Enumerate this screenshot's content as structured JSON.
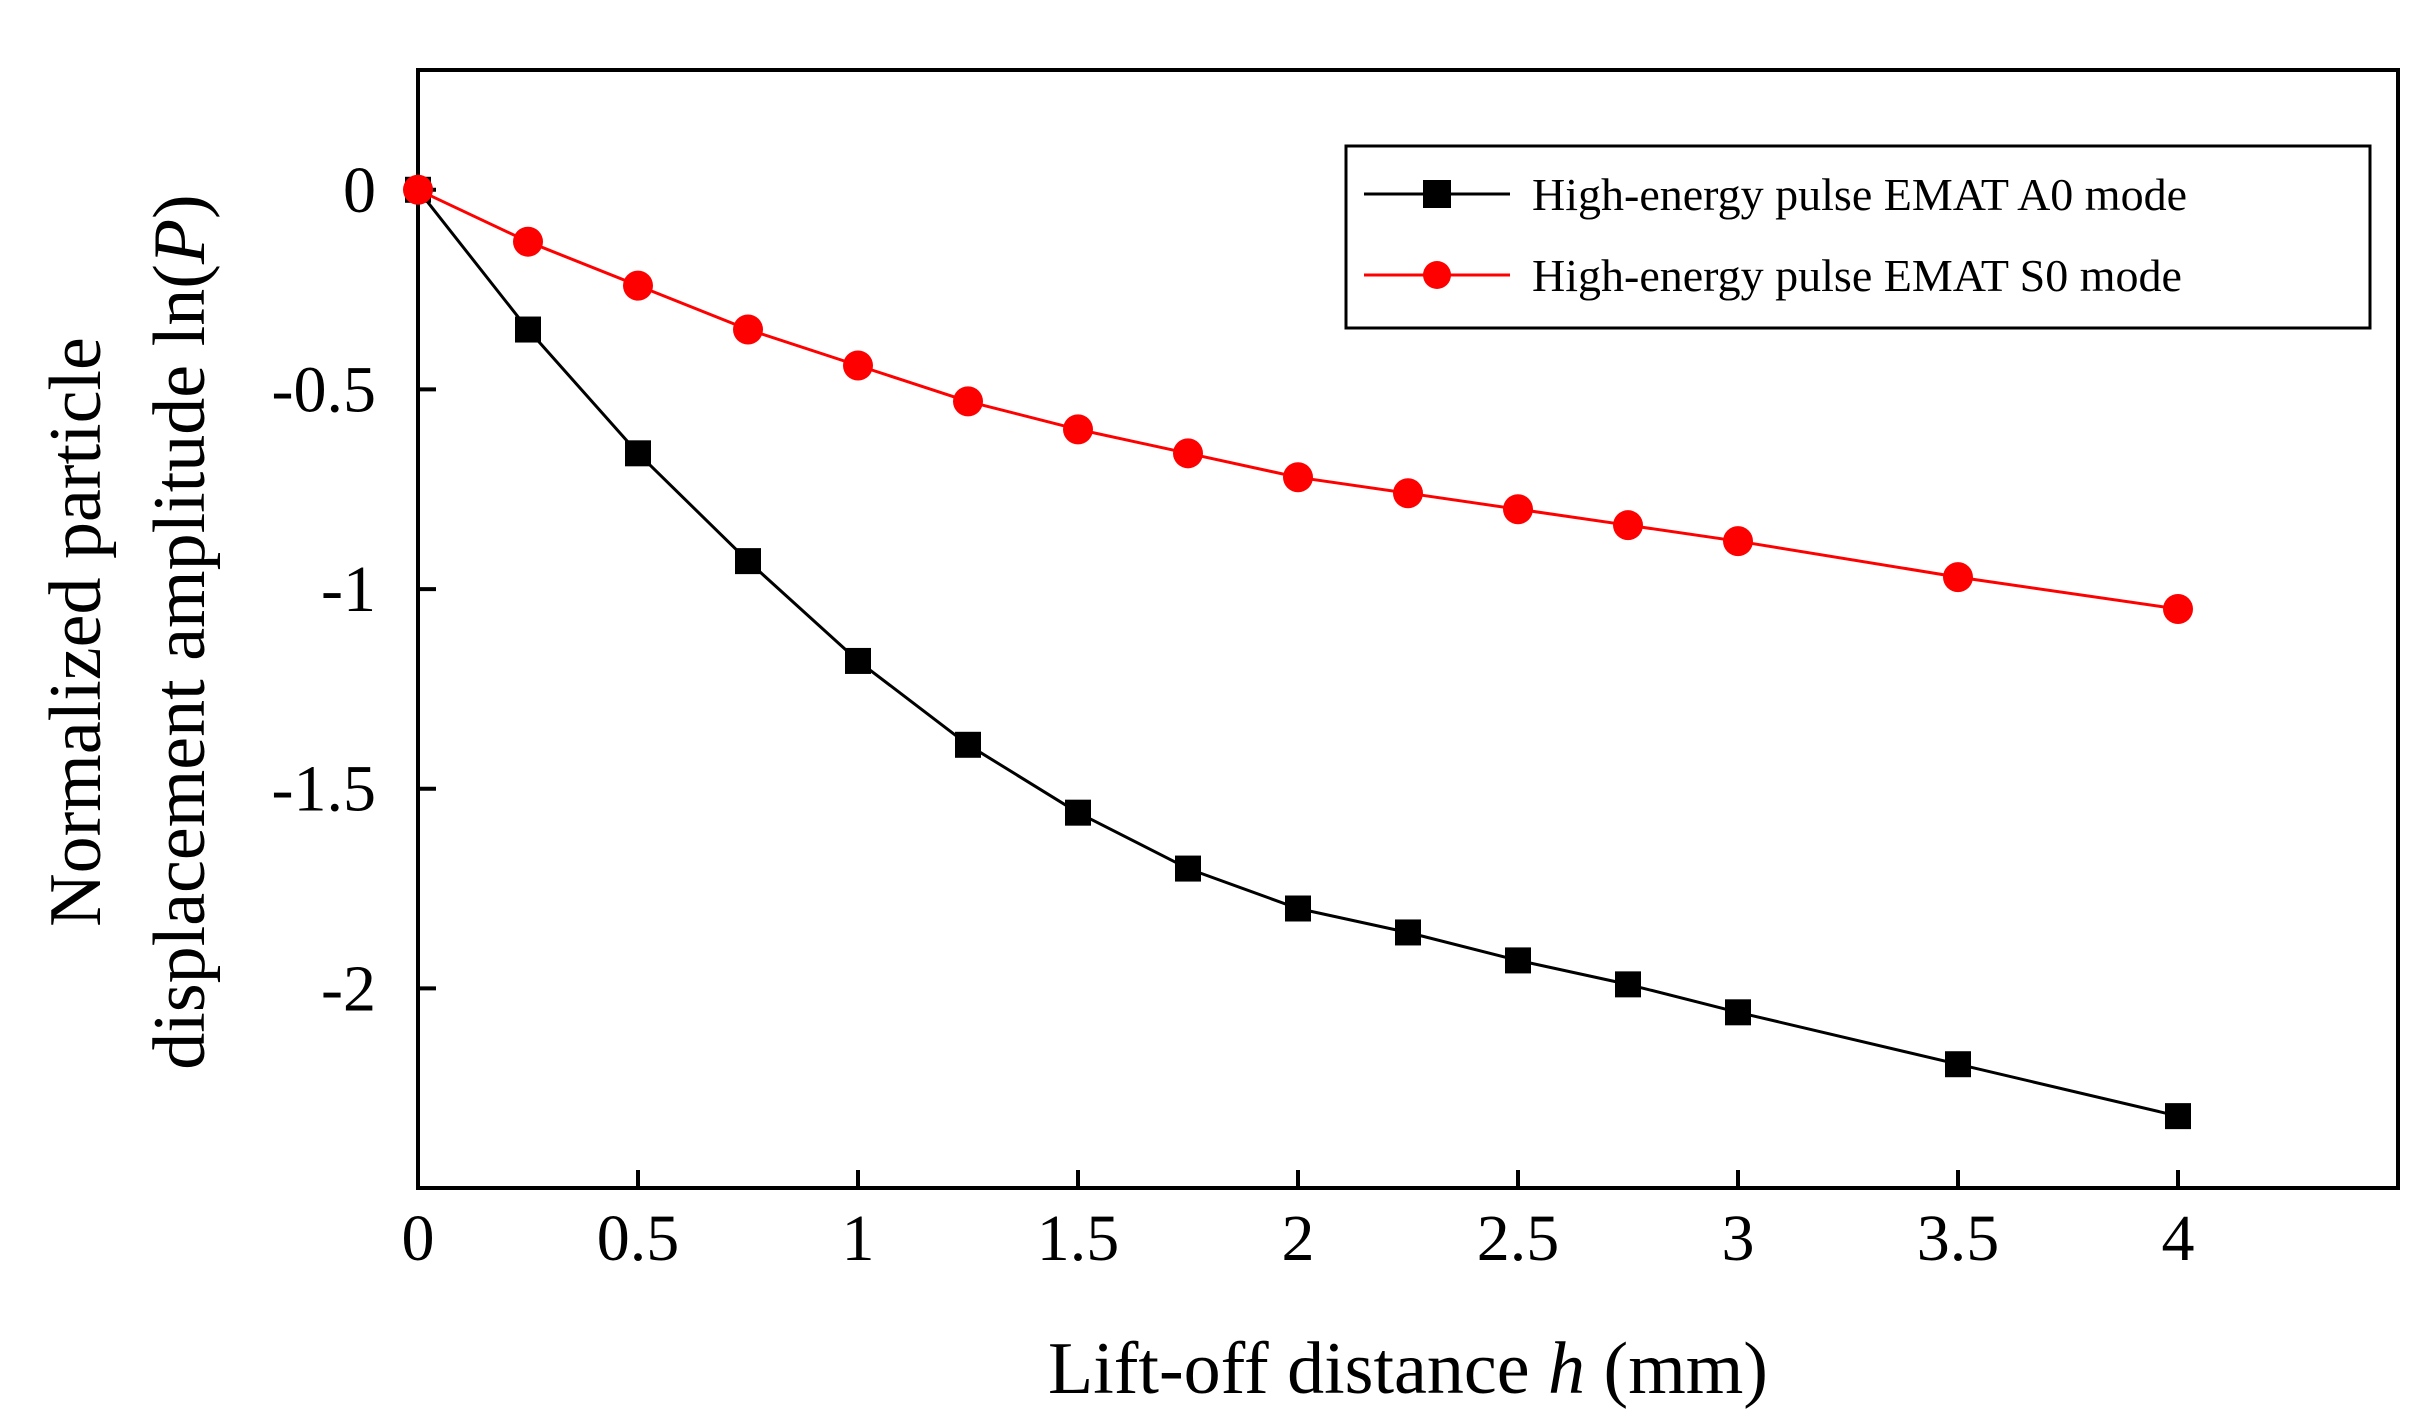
{
  "chart_data": {
    "type": "line",
    "title": "",
    "xlabel": "Lift-off distance h (mm)",
    "xlabel_parts": {
      "prefix": "Lift-off distance ",
      "variable": "h",
      "suffix": " (mm)"
    },
    "ylabel_lines": [
      "Normalized particle",
      "displacement amplitude ln(P)"
    ],
    "ylabel_parts": {
      "line1": "Normalized particle",
      "line2_prefix": "displacement amplitude ln(",
      "line2_variable": "P",
      "line2_suffix": ")"
    },
    "xlim": [
      0,
      4.5
    ],
    "ylim": [
      -2.5,
      0.3
    ],
    "xticks": [
      0,
      0.5,
      1,
      1.5,
      2,
      2.5,
      3,
      3.5,
      4
    ],
    "xtick_labels": [
      "0",
      "0.5",
      "1",
      "1.5",
      "2",
      "2.5",
      "3",
      "3.5",
      "4"
    ],
    "yticks": [
      0,
      -0.5,
      -1,
      -1.5,
      -2
    ],
    "ytick_labels": [
      "0",
      "-0.5",
      "-1",
      "-1.5",
      "-2"
    ],
    "grid": false,
    "legend_position": "top-right",
    "series": [
      {
        "name": "High-energy pulse EMAT A0 mode",
        "color": "#000000",
        "marker": "square",
        "x": [
          0,
          0.25,
          0.5,
          0.75,
          1,
          1.25,
          1.5,
          1.75,
          2,
          2.25,
          2.5,
          2.75,
          3,
          3.5,
          4
        ],
        "y": [
          0,
          -0.35,
          -0.66,
          -0.93,
          -1.18,
          -1.39,
          -1.56,
          -1.7,
          -1.8,
          -1.86,
          -1.93,
          -1.99,
          -2.06,
          -2.19,
          -2.32
        ]
      },
      {
        "name": "High-energy pulse EMAT S0 mode",
        "color": "#ff0000",
        "marker": "circle",
        "x": [
          0,
          0.25,
          0.5,
          0.75,
          1,
          1.25,
          1.5,
          1.75,
          2,
          2.25,
          2.5,
          2.75,
          3,
          3.5,
          4
        ],
        "y": [
          0,
          -0.13,
          -0.24,
          -0.35,
          -0.44,
          -0.53,
          -0.6,
          -0.66,
          -0.72,
          -0.76,
          -0.8,
          -0.84,
          -0.88,
          -0.97,
          -1.05
        ]
      }
    ]
  }
}
